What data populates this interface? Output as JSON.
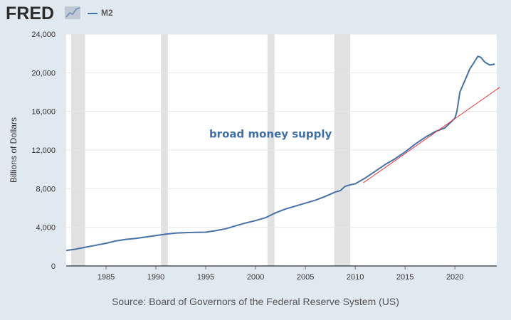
{
  "header": {
    "logo_text": "FRED",
    "legend_label": "M2"
  },
  "source_text": "Source: Board of Governors of the Federal Reserve System (US)",
  "colors": {
    "background": "#e1e9f0",
    "plot_bg": "#ffffff",
    "series": "#4572a7",
    "trend": "#e8323c",
    "recession": "#e1e1e1",
    "grid": "#e6e6e6"
  },
  "chart_data": {
    "type": "line",
    "title": "",
    "xlabel": "",
    "ylabel": "Billions of Dollars",
    "xlim": [
      1981,
      2024.2
    ],
    "ylim": [
      0,
      24000
    ],
    "grid": true,
    "legend": "top-left",
    "y_ticks": [
      0,
      4000,
      8000,
      12000,
      16000,
      20000,
      24000
    ],
    "y_tick_labels": [
      "0",
      "4,000",
      "8,000",
      "12,000",
      "16,000",
      "20,000",
      "24,000"
    ],
    "x_ticks": [
      1985,
      1990,
      1995,
      2000,
      2005,
      2010,
      2015,
      2020
    ],
    "x_tick_labels": [
      "1985",
      "1990",
      "1995",
      "2000",
      "2005",
      "2010",
      "2015",
      "2020"
    ],
    "recessions": [
      [
        1981.5,
        1982.9
      ],
      [
        1990.5,
        1991.2
      ],
      [
        2001.2,
        2001.9
      ],
      [
        2007.9,
        2009.5
      ]
    ],
    "annotations": [
      {
        "text": "broad money supply",
        "x": 2001.5,
        "y": 13300
      }
    ],
    "series": [
      {
        "name": "M2",
        "x": [
          1981.0,
          1982.0,
          1983.0,
          1984.0,
          1985.0,
          1986.0,
          1987.0,
          1988.0,
          1989.0,
          1990.0,
          1991.0,
          1992.0,
          1993.0,
          1994.0,
          1995.0,
          1996.0,
          1997.0,
          1998.0,
          1999.0,
          2000.0,
          2001.0,
          2002.0,
          2003.0,
          2004.0,
          2005.0,
          2006.0,
          2007.0,
          2008.0,
          2008.5,
          2009.0,
          2009.5,
          2010.0,
          2011.0,
          2012.0,
          2013.0,
          2014.0,
          2015.0,
          2016.0,
          2017.0,
          2018.0,
          2019.0,
          2020.0,
          2020.2,
          2020.5,
          2021.0,
          2021.5,
          2022.0,
          2022.3,
          2022.6,
          2023.0,
          2023.5,
          2024.0
        ],
        "y": [
          1600,
          1750,
          1950,
          2150,
          2350,
          2600,
          2750,
          2850,
          3000,
          3150,
          3300,
          3400,
          3450,
          3480,
          3500,
          3650,
          3850,
          4150,
          4450,
          4700,
          5000,
          5500,
          5900,
          6200,
          6500,
          6800,
          7200,
          7650,
          7800,
          8250,
          8400,
          8500,
          9100,
          9800,
          10500,
          11100,
          11800,
          12600,
          13300,
          13900,
          14300,
          15300,
          16000,
          18000,
          19200,
          20400,
          21200,
          21700,
          21600,
          21100,
          20800,
          20900
        ]
      },
      {
        "name": "",
        "x": [
          2010.8,
          2024.5
        ],
        "y": [
          8600,
          18500
        ]
      }
    ]
  }
}
